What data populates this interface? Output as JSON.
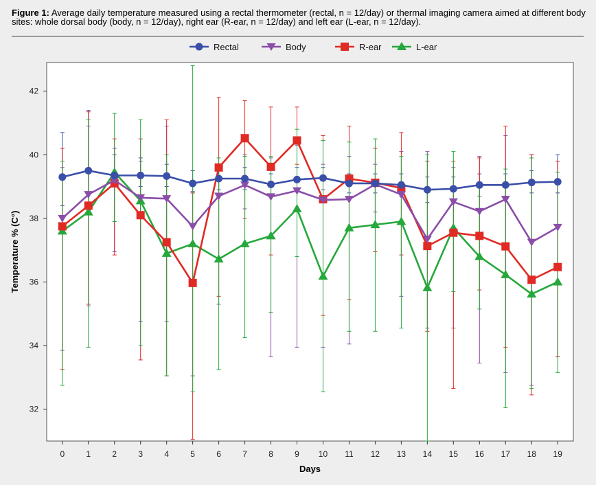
{
  "caption": {
    "label": "Figure 1:",
    "text": "Average daily temperature measured using a rectal thermometer (rectal, n = 12/day) or thermal imaging camera aimed at different body sites: whole dorsal body (body, n = 12/day), right ear (R-ear, n = 12/day) and left ear (L-ear, n = 12/day)."
  },
  "chart_data": {
    "type": "line",
    "title": "",
    "xlabel": "Days",
    "ylabel": "Temperature % (C°)",
    "x": [
      0,
      1,
      2,
      3,
      4,
      5,
      6,
      7,
      8,
      9,
      10,
      11,
      12,
      13,
      14,
      15,
      16,
      17,
      18,
      19
    ],
    "xlim": [
      -0.6,
      19.6
    ],
    "ylim": [
      31,
      42.9
    ],
    "yticks": [
      32,
      34,
      36,
      38,
      40,
      42
    ],
    "grid": false,
    "legend_position": "top-center",
    "series": [
      {
        "name": "Rectal",
        "color": "#3a4fa8",
        "marker": "circle",
        "values": [
          39.3,
          39.5,
          39.35,
          39.35,
          39.33,
          39.1,
          39.25,
          39.25,
          39.07,
          39.22,
          39.27,
          39.1,
          39.1,
          39.05,
          38.9,
          38.93,
          39.05,
          39.05,
          39.13,
          39.15
        ],
        "err_low": [
          38.4,
          38.8,
          39.0,
          39.0,
          39.0,
          38.8,
          38.9,
          38.9,
          38.7,
          38.9,
          38.9,
          38.8,
          38.8,
          38.7,
          38.5,
          38.6,
          38.7,
          38.7,
          38.8,
          38.8
        ],
        "err_high": [
          40.7,
          41.4,
          40.0,
          39.9,
          39.7,
          39.5,
          39.6,
          39.6,
          39.4,
          39.6,
          39.6,
          39.4,
          39.4,
          39.4,
          39.3,
          39.3,
          39.4,
          39.4,
          39.5,
          40.0
        ]
      },
      {
        "name": "Body",
        "color": "#8a4ea8",
        "marker": "triangle-down",
        "values": [
          38.0,
          38.75,
          39.2,
          38.65,
          38.62,
          37.75,
          38.7,
          39.05,
          38.68,
          38.87,
          38.58,
          38.6,
          39.07,
          38.75,
          37.35,
          38.52,
          38.22,
          38.6,
          37.25,
          37.72
        ],
        "err_low": [
          33.85,
          35.25,
          36.95,
          34.75,
          34.75,
          33.05,
          35.3,
          38.3,
          33.65,
          33.95,
          33.95,
          34.05,
          38.2,
          35.55,
          34.55,
          34.55,
          33.45,
          33.15,
          32.75,
          33.65
        ],
        "err_high": [
          39.6,
          40.9,
          40.2,
          39.8,
          40.9,
          38.85,
          39.5,
          40.0,
          39.9,
          40.3,
          39.7,
          39.95,
          39.7,
          40.1,
          40.1,
          39.6,
          39.95,
          40.6,
          40.0,
          39.8
        ]
      },
      {
        "name": "R-ear",
        "color": "#e02a24",
        "marker": "square",
        "values": [
          37.75,
          38.4,
          39.1,
          38.1,
          37.25,
          35.97,
          39.6,
          40.52,
          39.62,
          40.45,
          38.6,
          39.25,
          39.12,
          38.95,
          37.13,
          37.55,
          37.45,
          37.12,
          36.07,
          36.47
        ],
        "err_low": [
          33.25,
          35.3,
          36.85,
          33.55,
          33.05,
          31.05,
          35.55,
          38.0,
          36.85,
          39.7,
          34.95,
          35.45,
          36.95,
          36.85,
          34.45,
          32.65,
          35.75,
          33.95,
          32.45,
          33.65
        ],
        "err_high": [
          40.2,
          41.35,
          40.5,
          40.5,
          41.1,
          38.8,
          41.8,
          41.7,
          41.5,
          41.5,
          40.6,
          40.9,
          40.2,
          40.7,
          39.8,
          39.8,
          39.9,
          40.9,
          40.0,
          39.8
        ]
      },
      {
        "name": "L-ear",
        "color": "#26a83c",
        "marker": "triangle-up",
        "values": [
          37.6,
          38.2,
          39.45,
          38.55,
          36.9,
          37.2,
          36.72,
          37.2,
          37.45,
          38.3,
          36.18,
          37.7,
          37.8,
          37.9,
          35.82,
          37.7,
          36.8,
          36.23,
          35.62,
          36.0
        ],
        "err_low": [
          32.75,
          33.95,
          37.9,
          34.0,
          33.05,
          32.55,
          33.25,
          34.25,
          35.05,
          36.8,
          32.55,
          34.45,
          34.45,
          34.55,
          31.0,
          35.7,
          35.15,
          32.05,
          32.65,
          33.15
        ],
        "err_high": [
          39.8,
          41.1,
          41.3,
          41.1,
          40.0,
          42.8,
          39.9,
          39.95,
          39.95,
          40.8,
          40.45,
          40.4,
          40.5,
          39.95,
          40.0,
          40.1,
          38.95,
          39.55,
          39.9,
          39.45
        ]
      }
    ]
  }
}
